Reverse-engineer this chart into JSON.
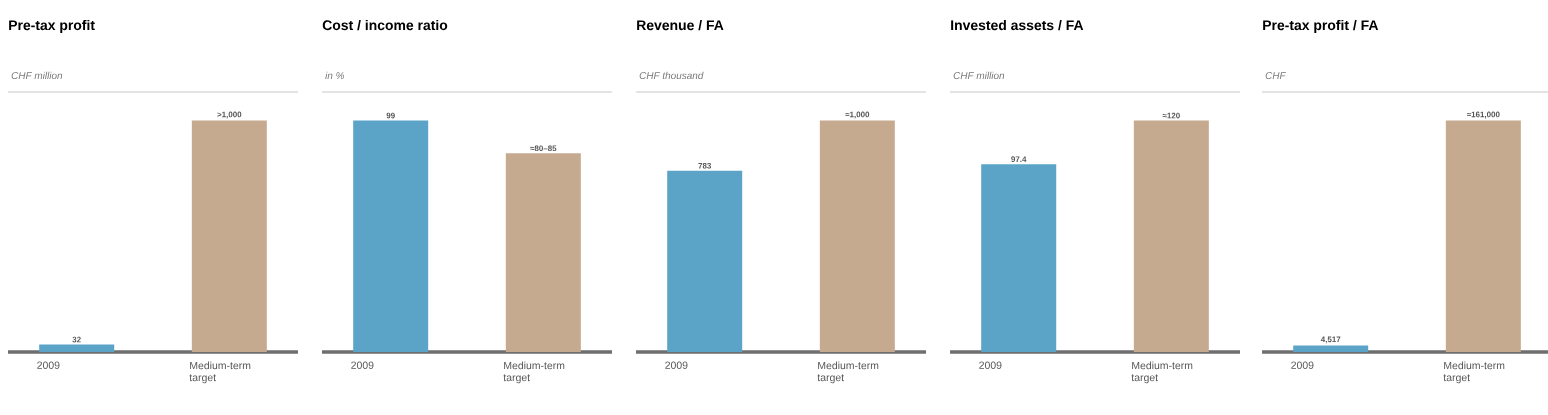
{
  "chart_data": [
    {
      "type": "bar",
      "title": "Pre-tax profit",
      "subtitle": "CHF million",
      "categories": [
        "2009",
        "Medium-term target"
      ],
      "values": [
        32,
        1000
      ],
      "colors": [
        "#5ba4c7",
        "#c6aa90"
      ],
      "value_labels": [
        "32",
        ">1,000"
      ]
    },
    {
      "type": "bar",
      "title": "Cost / income ratio",
      "subtitle": "in %",
      "categories": [
        "2009",
        "Medium-term target"
      ],
      "values": [
        99,
        85
      ],
      "colors": [
        "#5ba4c7",
        "#c6aa90"
      ],
      "value_labels": [
        "99",
        "≈80–85"
      ]
    },
    {
      "type": "bar",
      "title": "Revenue / FA",
      "subtitle": "CHF thousand",
      "categories": [
        "2009",
        "Medium-term target"
      ],
      "values": [
        783,
        1000
      ],
      "colors": [
        "#5ba4c7",
        "#c6aa90"
      ],
      "value_labels": [
        "783",
        "≈1,000"
      ]
    },
    {
      "type": "bar",
      "title": "Invested assets / FA",
      "subtitle": "CHF million",
      "categories": [
        "2009",
        "Medium-term target"
      ],
      "values": [
        97.4,
        120
      ],
      "colors": [
        "#5ba4c7",
        "#c6aa90"
      ],
      "value_labels": [
        "97.4",
        "≈120"
      ]
    },
    {
      "type": "bar",
      "title": "Pre-tax profit / FA",
      "subtitle": "CHF",
      "categories": [
        "2009",
        "Medium-term target"
      ],
      "values": [
        4517,
        161000
      ],
      "colors": [
        "#5ba4c7",
        "#c6aa90"
      ],
      "value_labels": [
        "4,517",
        "≈161,000"
      ]
    }
  ]
}
